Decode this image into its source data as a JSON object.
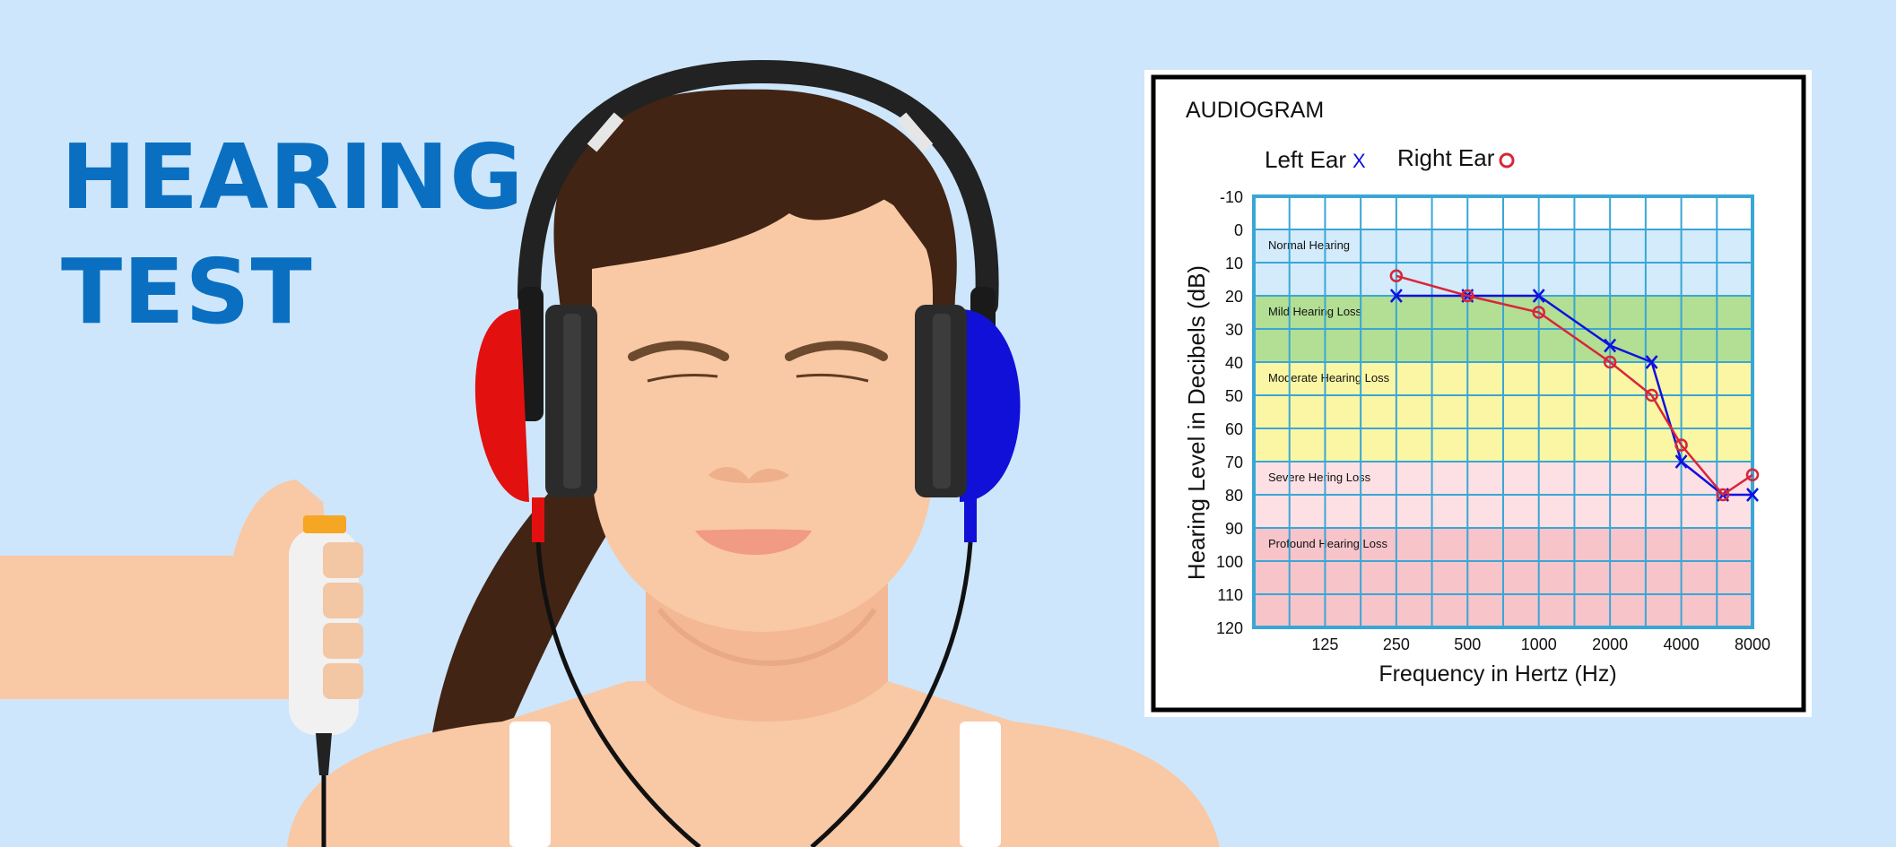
{
  "headline": {
    "line1": "HEARING",
    "line2": "TEST"
  },
  "colors": {
    "background": "#cde6fb",
    "headline": "#0a6fc0",
    "left_ear": "#1010e0",
    "right_ear": "#d8263a",
    "grid": "#3aa6d6"
  },
  "chart_data": {
    "type": "line",
    "title": "AUDIOGRAM",
    "xlabel": "Frequency in Hertz (Hz)",
    "ylabel": "Hearing Level in Decibels (dB)",
    "x_ticks": [
      "125",
      "250",
      "500",
      "1000",
      "2000",
      "4000",
      "8000"
    ],
    "y_ticks": [
      -10,
      0,
      10,
      20,
      30,
      40,
      50,
      60,
      70,
      80,
      90,
      100,
      110,
      120
    ],
    "ylim": [
      -10,
      120
    ],
    "y_inverted": true,
    "xscale": "log2",
    "xlim": [
      62.5,
      8000
    ],
    "grid": true,
    "legend": {
      "placement": "top-left",
      "entries": [
        {
          "label": "Left Ear",
          "marker": "X"
        },
        {
          "label": "Right Ear",
          "marker": "O"
        }
      ]
    },
    "bands": [
      {
        "label": "Normal Hearing",
        "from": 0,
        "to": 20,
        "color": "#d3ebfb"
      },
      {
        "label": "Mild Hearing Loss",
        "from": 20,
        "to": 40,
        "color": "#b2df93"
      },
      {
        "label": "Moderate Hearing Loss",
        "from": 40,
        "to": 70,
        "color": "#faf6a4"
      },
      {
        "label": "Severe Hering Loss",
        "from": 70,
        "to": 90,
        "color": "#fde0e4"
      },
      {
        "label": "Profound Hearing Loss",
        "from": 90,
        "to": 120,
        "color": "#f7c4ca"
      }
    ],
    "series": [
      {
        "name": "Left Ear",
        "marker": "x",
        "color": "#1010e0",
        "x": [
          250,
          500,
          1000,
          2000,
          3000,
          4000,
          6000,
          8000
        ],
        "y": [
          20,
          20,
          20,
          35,
          40,
          70,
          80,
          80
        ]
      },
      {
        "name": "Right Ear",
        "marker": "o",
        "color": "#d8263a",
        "x": [
          250,
          500,
          1000,
          2000,
          3000,
          4000,
          6000,
          8000
        ],
        "y": [
          14,
          20,
          25,
          40,
          50,
          65,
          80,
          74
        ]
      }
    ]
  }
}
